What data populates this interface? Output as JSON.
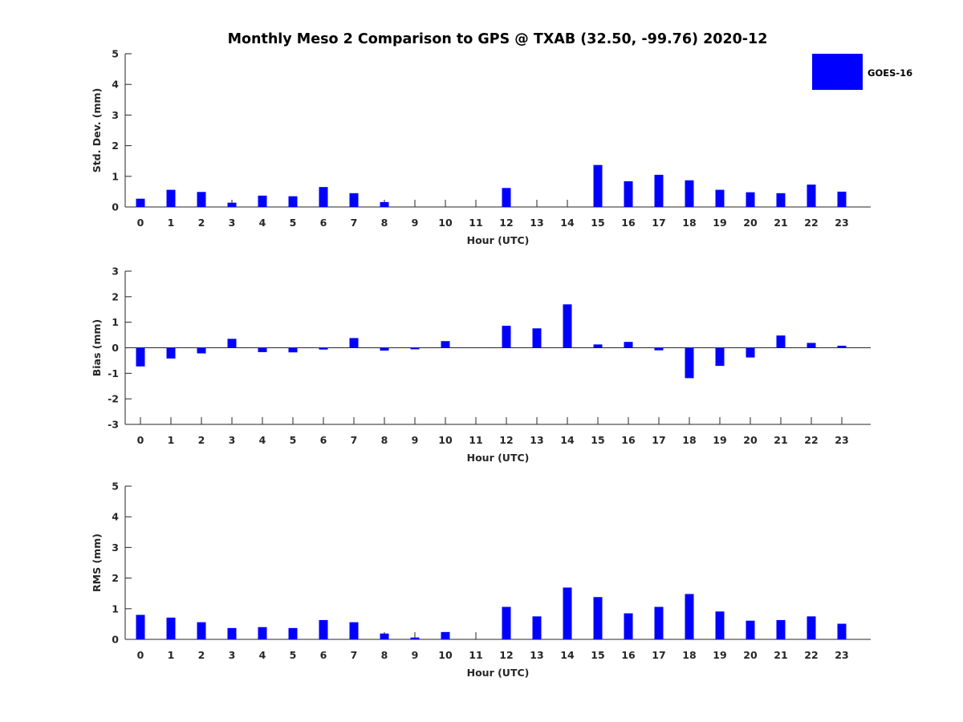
{
  "title": "Monthly Meso 2 Comparison to GPS @ TXAB (32.50, -99.76) 2020-12",
  "legend": {
    "entries": [
      "GOES-16"
    ],
    "placement": "top-right"
  },
  "chart_data": [
    {
      "type": "bar",
      "xlabel": "Hour (UTC)",
      "ylabel": "Std. Dev. (mm)",
      "ylim": [
        0,
        5
      ],
      "yticks": [
        "0",
        "1",
        "2",
        "3",
        "4",
        "5"
      ],
      "categories": [
        "0",
        "1",
        "2",
        "3",
        "4",
        "5",
        "6",
        "7",
        "8",
        "9",
        "10",
        "11",
        "12",
        "13",
        "14",
        "15",
        "16",
        "17",
        "18",
        "19",
        "20",
        "21",
        "22",
        "23"
      ],
      "series": [
        {
          "name": "GOES-16",
          "color": "#0000ff",
          "values": [
            0.27,
            0.56,
            0.49,
            0.14,
            0.37,
            0.35,
            0.65,
            0.45,
            0.16,
            0,
            0,
            0,
            0.62,
            0,
            0,
            1.37,
            0.84,
            1.05,
            0.87,
            0.56,
            0.48,
            0.45,
            0.73,
            0.5
          ]
        }
      ]
    },
    {
      "type": "bar",
      "xlabel": "Hour (UTC)",
      "ylabel": "Bias (mm)",
      "ylim": [
        -3,
        3
      ],
      "yticks": [
        "-3",
        "-2",
        "-1",
        "0",
        "1",
        "2",
        "3"
      ],
      "categories": [
        "0",
        "1",
        "2",
        "3",
        "4",
        "5",
        "6",
        "7",
        "8",
        "9",
        "10",
        "11",
        "12",
        "13",
        "14",
        "15",
        "16",
        "17",
        "18",
        "19",
        "20",
        "21",
        "22",
        "23"
      ],
      "series": [
        {
          "name": "GOES-16",
          "color": "#0000ff",
          "values": [
            -0.73,
            -0.42,
            -0.22,
            0.35,
            -0.17,
            -0.18,
            -0.07,
            0.38,
            -0.11,
            -0.06,
            0.26,
            0,
            0.86,
            0.76,
            1.7,
            0.13,
            0.23,
            -0.1,
            -1.19,
            -0.71,
            -0.38,
            0.48,
            0.19,
            0.08
          ]
        }
      ]
    },
    {
      "type": "bar",
      "xlabel": "Hour (UTC)",
      "ylabel": "RMS (mm)",
      "ylim": [
        0,
        5
      ],
      "yticks": [
        "0",
        "1",
        "2",
        "3",
        "4",
        "5"
      ],
      "categories": [
        "0",
        "1",
        "2",
        "3",
        "4",
        "5",
        "6",
        "7",
        "8",
        "9",
        "10",
        "11",
        "12",
        "13",
        "14",
        "15",
        "16",
        "17",
        "18",
        "19",
        "20",
        "21",
        "22",
        "23"
      ],
      "series": [
        {
          "name": "GOES-16",
          "color": "#0000ff",
          "values": [
            0.8,
            0.71,
            0.56,
            0.37,
            0.4,
            0.37,
            0.63,
            0.56,
            0.19,
            0.06,
            0.24,
            0,
            1.06,
            0.75,
            1.69,
            1.38,
            0.85,
            1.06,
            1.48,
            0.91,
            0.61,
            0.63,
            0.75,
            0.51
          ]
        }
      ]
    }
  ]
}
